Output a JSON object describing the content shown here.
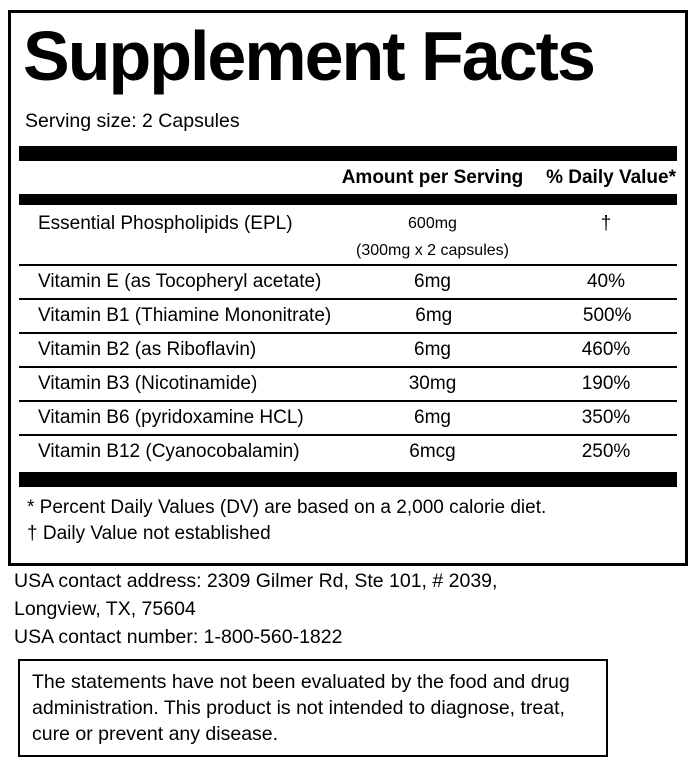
{
  "label": {
    "title": "Supplement Facts",
    "serving_size": "Serving size: 2 Capsules",
    "columns": {
      "amount": "Amount per Serving",
      "daily_value": "% Daily Value*"
    },
    "rows": [
      {
        "name": "Essential Phospholipids (EPL)",
        "amount": "600mg",
        "amount_note": "(300mg x 2 capsules)",
        "dv": "†"
      },
      {
        "name": "Vitamin E (as Tocopheryl acetate)",
        "amount": "6mg",
        "dv": "40%"
      },
      {
        "name": "Vitamin B1 (Thiamine Mononitrate)",
        "amount": "6mg",
        "dv": "500%"
      },
      {
        "name": "Vitamin B2 (as Riboflavin)",
        "amount": "6mg",
        "dv": "460%"
      },
      {
        "name": "Vitamin B3 (Nicotinamide)",
        "amount": "30mg",
        "dv": "190%"
      },
      {
        "name": "Vitamin B6 (pyridoxamine HCL)",
        "amount": "6mg",
        "dv": "350%"
      },
      {
        "name": "Vitamin B12 (Cyanocobalamin)",
        "amount": "6mcg",
        "dv": "250%"
      }
    ],
    "footnotes": [
      "* Percent Daily Values (DV) are based on a 2,000 calorie diet.",
      "† Daily Value not established"
    ]
  },
  "contact": {
    "address_line1": "USA contact address: 2309 Gilmer Rd, Ste 101, # 2039,",
    "address_line2": "Longview, TX, 75604",
    "phone": "USA contact number: 1-800-560-1822"
  },
  "disclaimer": "The statements have not been evaluated by the food and drug administration. This product is not intended to diagnose, treat, cure or prevent any disease.",
  "colors": {
    "text": "#000000",
    "background": "#ffffff",
    "rule": "#000000"
  }
}
